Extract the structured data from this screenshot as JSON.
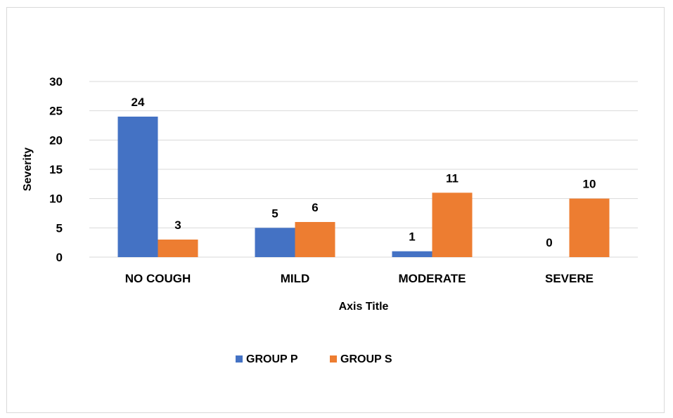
{
  "chart_data": {
    "type": "bar",
    "title": "",
    "xlabel": "Axis Title",
    "ylabel": "Severity",
    "categories": [
      "NO COUGH",
      "MILD",
      "MODERATE",
      "SEVERE"
    ],
    "series": [
      {
        "name": "GROUP P",
        "values": [
          24,
          5,
          1,
          0
        ],
        "color": "#4472C4"
      },
      {
        "name": "GROUP S",
        "values": [
          3,
          6,
          11,
          10
        ],
        "color": "#ED7D31"
      }
    ],
    "ylim": [
      0,
      30
    ],
    "yticks": [
      0,
      5,
      10,
      15,
      20,
      25,
      30
    ],
    "grid": true,
    "legend_position": "bottom",
    "gridline_color": "#d9d9d9"
  }
}
